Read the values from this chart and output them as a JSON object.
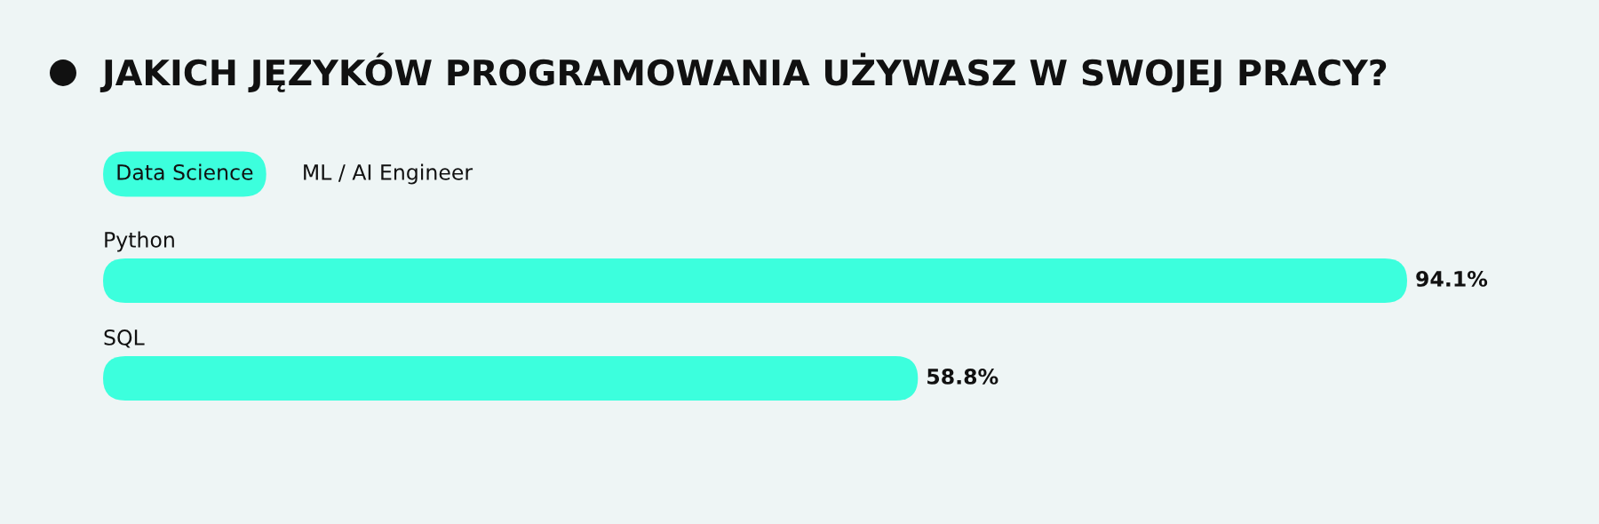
{
  "chart_data": {
    "type": "bar",
    "orientation": "horizontal",
    "title": "JAKICH JĘZYKÓW PROGRAMOWANIA UŻYWASZ W SWOJEJ PRACY?",
    "categories": [
      "Python",
      "SQL"
    ],
    "values": [
      94.1,
      58.8
    ],
    "value_labels": [
      "94.1%",
      "58.8%"
    ],
    "color": "#3cffdd",
    "tick_labels": "y",
    "annotations": [
      "Data Science",
      "ML / AI Engineer"
    ]
  }
}
